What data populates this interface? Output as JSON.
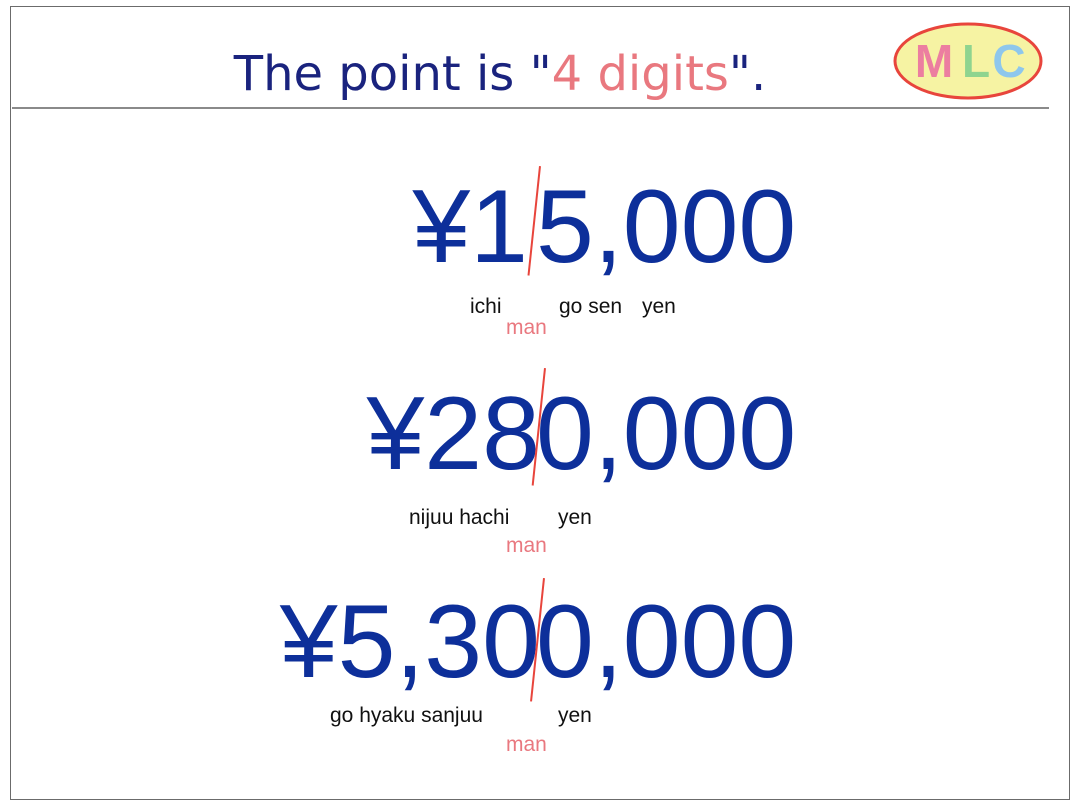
{
  "slide": {
    "title_before": "The point is \"",
    "title_highlight": "4 digits",
    "title_after": "\".",
    "logo_text": {
      "m": "M",
      "l": "L",
      "c": "C"
    },
    "colors": {
      "title": "#1a237e",
      "highlight": "#e9787f",
      "amount": "#0d2f9a",
      "divider": "#e8453c",
      "logo_fill": "#f6f3a3",
      "logo_stroke": "#e8453c",
      "logo_m": "#ec7ea0",
      "logo_l": "#8fd48f",
      "logo_c": "#8ec7ec"
    }
  },
  "examples": [
    {
      "amount_left": "¥1",
      "amount_right": "5,000",
      "reading_left": "ichi",
      "reading_mid": "go sen",
      "reading_yen": "yen",
      "man": "man"
    },
    {
      "amount_left": "¥28",
      "amount_right": "0,000",
      "reading_left": "nijuu hachi",
      "reading_mid": "",
      "reading_yen": "yen",
      "man": "man"
    },
    {
      "amount_left": "¥5,30",
      "amount_right": "0,000",
      "reading_left": "go hyaku sanjuu",
      "reading_mid": "",
      "reading_yen": "yen",
      "man": "man"
    }
  ]
}
